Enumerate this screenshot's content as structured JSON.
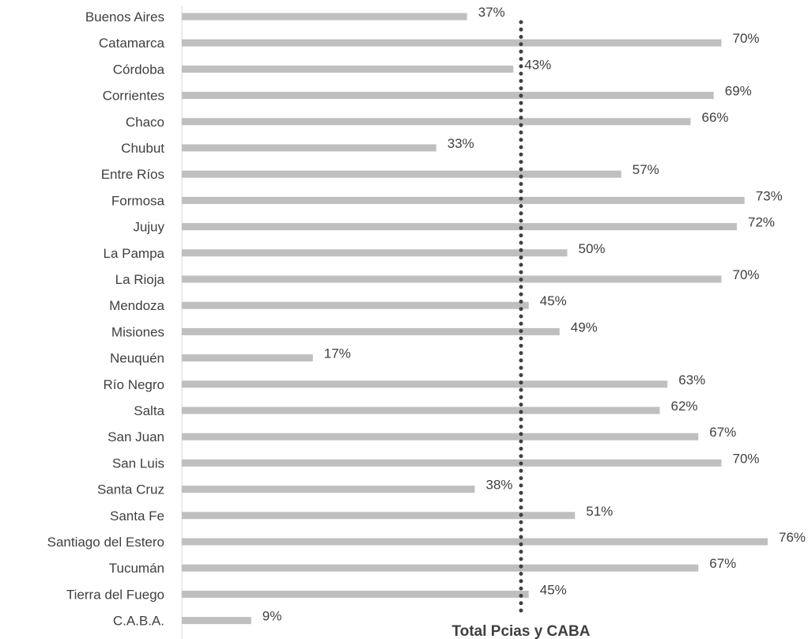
{
  "chart_data": {
    "type": "bar",
    "orientation": "horizontal",
    "categories": [
      "Buenos Aires",
      "Catamarca",
      "Córdoba",
      "Corrientes",
      "Chaco",
      "Chubut",
      "Entre Ríos",
      "Formosa",
      "Jujuy",
      "La Pampa",
      "La Rioja",
      "Mendoza",
      "Misiones",
      "Neuquén",
      "Río Negro",
      "Salta",
      "San Juan",
      "San Luis",
      "Santa Cruz",
      "Santa Fe",
      "Santiago del Estero",
      "Tucumán",
      "Tierra del Fuego",
      "C.A.B.A."
    ],
    "values": [
      37,
      70,
      43,
      69,
      66,
      33,
      57,
      73,
      72,
      50,
      70,
      45,
      49,
      17,
      63,
      62,
      67,
      70,
      38,
      51,
      76,
      67,
      45,
      9
    ],
    "data_labels": [
      "37%",
      "70%",
      "43%",
      "69%",
      "66%",
      "33%",
      "57%",
      "73%",
      "72%",
      "50%",
      "70%",
      "45%",
      "49%",
      "17%",
      "63%",
      "62%",
      "67%",
      "70%",
      "38%",
      "51%",
      "76%",
      "67%",
      "45%",
      "9%"
    ],
    "reference_line": {
      "label": "Total Pcias y CABA",
      "value": 44,
      "style": "dotted"
    },
    "xlim": [
      0,
      80
    ],
    "bar_color": "#bfbfbf",
    "reference_line_color": "#404040",
    "axis_color": "#d9d9d9",
    "grid": false,
    "title": "",
    "xlabel": "",
    "ylabel": ""
  }
}
